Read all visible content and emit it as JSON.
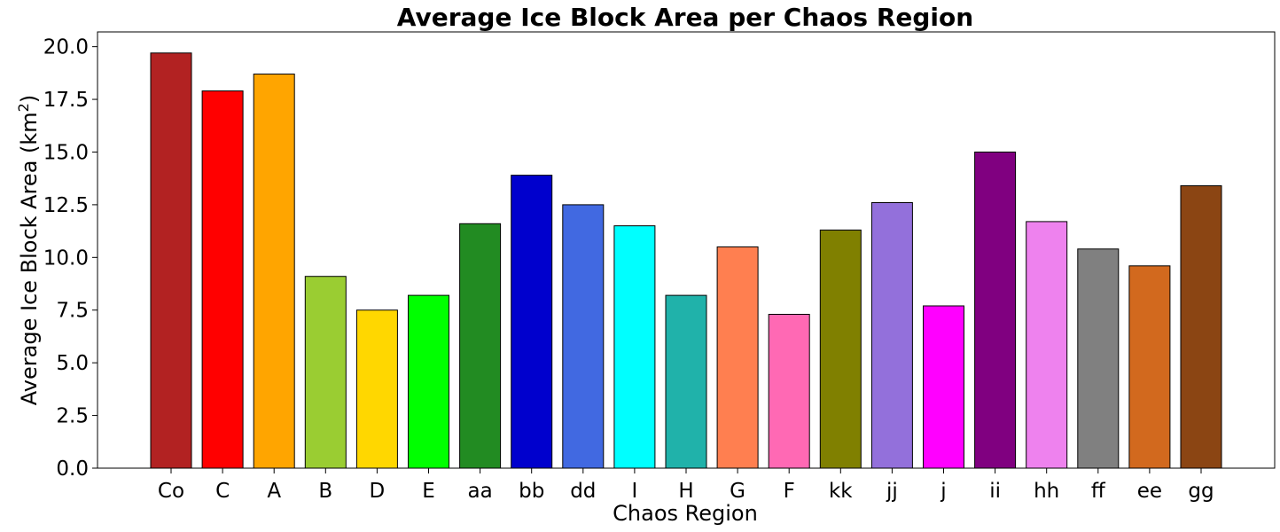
{
  "chart_data": {
    "type": "bar",
    "title": "Average Ice Block Area per Chaos Region",
    "xlabel": "Chaos Region",
    "ylabel": "Average Ice Block Area (km",
    "ylabel_sup": "2",
    "ylabel_close": ")",
    "ylim": [
      0,
      20.7
    ],
    "yticks": [
      0,
      2.5,
      5,
      7.5,
      10,
      12.5,
      15,
      17.5,
      20
    ],
    "ytick_labels": [
      "0.0",
      "2.5",
      "5.0",
      "7.5",
      "10.0",
      "12.5",
      "15.0",
      "17.5",
      "20.0"
    ],
    "grid": false,
    "categories": [
      "Co",
      "C",
      "A",
      "B",
      "D",
      "E",
      "aa",
      "bb",
      "dd",
      "I",
      "H",
      "G",
      "F",
      "kk",
      "jj",
      "j",
      "ii",
      "hh",
      "ff",
      "ee",
      "gg"
    ],
    "values": [
      19.7,
      17.9,
      18.7,
      9.1,
      7.5,
      8.2,
      11.6,
      13.9,
      12.5,
      11.5,
      8.2,
      10.5,
      7.3,
      11.3,
      12.6,
      7.7,
      15.0,
      11.7,
      10.4,
      9.6,
      13.4
    ],
    "colors": [
      "#b22222",
      "#ff0000",
      "#ffa500",
      "#9acd32",
      "#ffd700",
      "#00ff00",
      "#228b22",
      "#0000cd",
      "#4169e1",
      "#00ffff",
      "#20b2aa",
      "#ff7f50",
      "#ff69b4",
      "#808000",
      "#9370db",
      "#ff00ff",
      "#800080",
      "#ee82ee",
      "#808080",
      "#d2691e",
      "#8b4513"
    ]
  }
}
